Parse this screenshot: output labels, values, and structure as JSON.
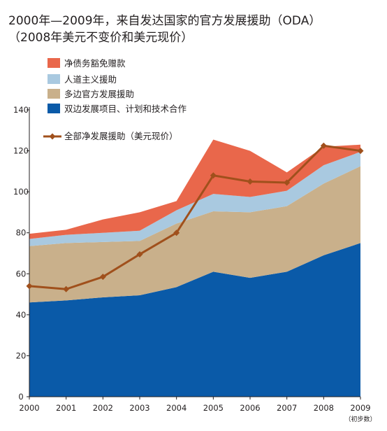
{
  "title_line1": "2000年—2009年，来自发达国家的官方发展援助（ODA）",
  "title_line2": "（2008年美元不变价和美元现价）",
  "note": "（初步数）",
  "chart_data": {
    "type": "area",
    "stacked": true,
    "categories": [
      "2000",
      "2001",
      "2002",
      "2003",
      "2004",
      "2005",
      "2006",
      "2007",
      "2008",
      "2009"
    ],
    "ylim": [
      0,
      140
    ],
    "yticks": [
      0,
      20,
      40,
      60,
      80,
      100,
      120,
      140
    ],
    "grid": false,
    "legend_position": "top-left",
    "series": [
      {
        "name": "双边发展项目、计划和技术合作",
        "color": "#0a5aa8",
        "values": [
          46,
          47,
          48.5,
          49.5,
          53.5,
          61,
          58,
          61,
          69,
          75
        ]
      },
      {
        "name": "多边官方发展援助",
        "color": "#c9b08b",
        "values": [
          27.5,
          28,
          27,
          26.5,
          31,
          29.5,
          32,
          32,
          35,
          37.5
        ]
      },
      {
        "name": "人道主义援助",
        "color": "#a9c9e0",
        "values": [
          3.5,
          4,
          4.5,
          5,
          6.5,
          8.5,
          7.5,
          7.5,
          9,
          7
        ]
      },
      {
        "name": "净债务豁免赠款",
        "color": "#e9674b",
        "values": [
          2.5,
          2.5,
          6.5,
          9,
          4.5,
          26.5,
          22.5,
          9,
          9,
          3.5
        ]
      }
    ],
    "line_series": {
      "name": "全部净发展援助（美元现价）",
      "color": "#a0501c",
      "values": [
        54,
        52.5,
        58.5,
        69.5,
        80,
        108,
        105,
        104.5,
        122.5,
        120
      ]
    }
  }
}
